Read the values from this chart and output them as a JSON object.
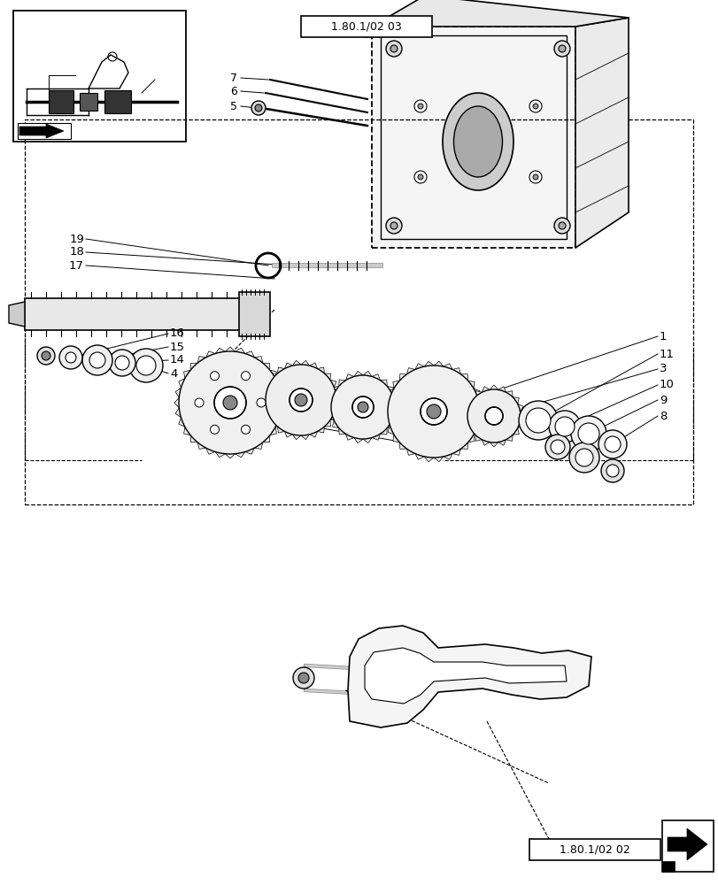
{
  "bg_color": "#ffffff",
  "line_color": "#000000",
  "fig_width": 8.12,
  "fig_height": 10.0,
  "dpi": 100,
  "ref_box1_text": "1.80.1/02 03",
  "ref_box2_text": "1.80.1/02 02"
}
